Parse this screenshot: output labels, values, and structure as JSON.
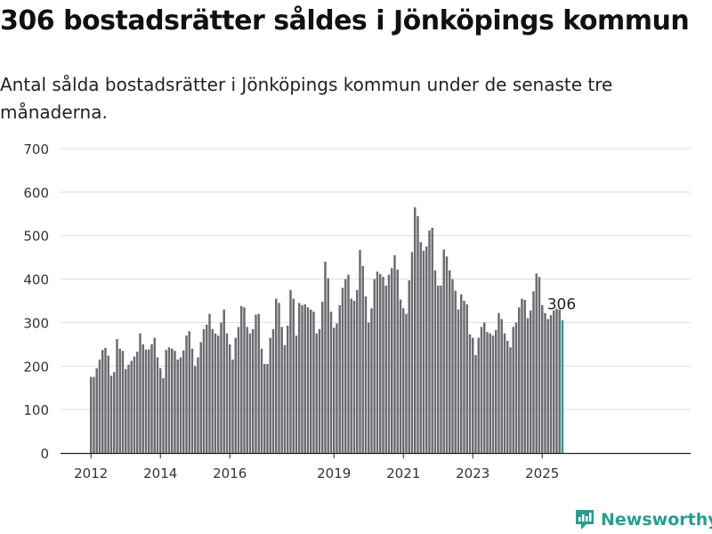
{
  "header": {
    "title": "306 bostadsrätter såldes i Jönköpings kommun",
    "subtitle": "Antal sålda bostadsrätter i Jönköpings kommun under de senaste tre månaderna."
  },
  "brand": {
    "name": "Newsworthy",
    "color": "#2a9d8f"
  },
  "colors": {
    "bar": "#6b6a70",
    "highlight": "#2a9d8f",
    "grid": "#dddddd"
  },
  "chart_data": {
    "type": "bar",
    "title": "",
    "xlabel": "",
    "ylabel": "",
    "ylim": [
      0,
      700
    ],
    "yticks": [
      0,
      100,
      200,
      300,
      400,
      500,
      600,
      700
    ],
    "grid": true,
    "start": {
      "year": 2012,
      "month": 1
    },
    "xtick_labels": [
      "2012",
      "2014",
      "2016",
      "2019",
      "2021",
      "2023",
      "2025"
    ],
    "highlight_last": true,
    "last_value_label": "306",
    "values": [
      175,
      175,
      195,
      215,
      237,
      242,
      224,
      178,
      186,
      262,
      240,
      235,
      193,
      203,
      212,
      222,
      233,
      275,
      250,
      238,
      238,
      250,
      265,
      220,
      195,
      172,
      237,
      243,
      240,
      235,
      215,
      220,
      236,
      270,
      280,
      240,
      200,
      220,
      255,
      285,
      295,
      320,
      285,
      275,
      270,
      300,
      330,
      275,
      250,
      215,
      265,
      290,
      338,
      335,
      290,
      275,
      285,
      318,
      320,
      240,
      205,
      205,
      265,
      285,
      355,
      345,
      290,
      248,
      293,
      375,
      355,
      270,
      345,
      340,
      342,
      335,
      330,
      325,
      275,
      285,
      348,
      440,
      402,
      325,
      288,
      298,
      340,
      380,
      400,
      410,
      355,
      350,
      375,
      467,
      430,
      360,
      300,
      333,
      400,
      417,
      412,
      405,
      385,
      410,
      425,
      455,
      422,
      353,
      333,
      320,
      397,
      462,
      565,
      545,
      485,
      465,
      475,
      512,
      518,
      420,
      385,
      385,
      468,
      452,
      420,
      400,
      373,
      330,
      365,
      350,
      342,
      273,
      265,
      225,
      265,
      290,
      300,
      278,
      275,
      270,
      283,
      322,
      308,
      275,
      258,
      243,
      290,
      300,
      335,
      355,
      352,
      310,
      328,
      372,
      413,
      405,
      340,
      322,
      308,
      317,
      328,
      332,
      330,
      306
    ]
  }
}
